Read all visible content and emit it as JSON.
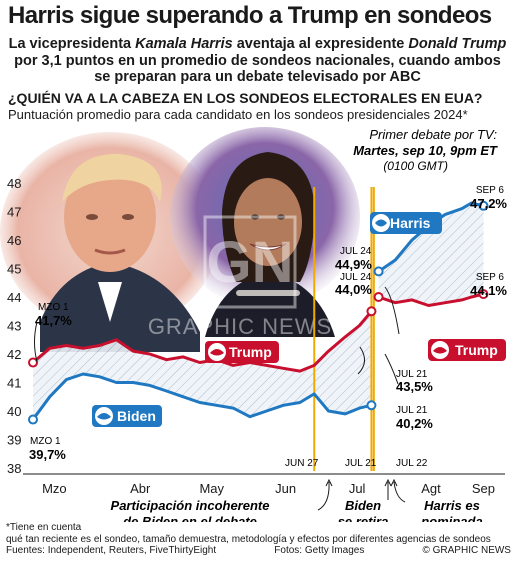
{
  "header": {
    "title": "Harris sigue superando a Trump en sondeos",
    "sub1_a": "La vicepresidenta ",
    "sub1_b": "Kamala Harris",
    "sub1_c": " aventaja al expresidente ",
    "sub1_d": "Donald Trump",
    "sub2": "por 3,1 puntos en un promedio de sondeos nacionales, cuando ambos",
    "sub3": "se preparan para un debate televisado por ABC",
    "question": "¿QUIÉN VA A LA CABEZA EN LOS SONDEOS ELECTORALES EN EUA?",
    "description": "Puntuación promedio para cada candidato en los sondeos presidenciales 2024*"
  },
  "debate": {
    "line1": "Primer debate por TV:",
    "line2": "Martes, sep 10, 9pm ET",
    "line3": "(0100 GMT)"
  },
  "watermark": "GRAPHIC NEWS",
  "candidates": {
    "harris": "Harris",
    "trump": "Trump",
    "biden": "Biden"
  },
  "labels": {
    "trump_start_date": "MZO 1",
    "trump_start_val": "41,7%",
    "biden_start_date": "MZO 1",
    "biden_start_val": "39,7%",
    "harris_jul24_date": "JUL 24",
    "harris_jul24_val": "44,9%",
    "trump_jul24_date": "JUL 24",
    "trump_jul24_val": "44,0%",
    "trump_jul21_date": "JUL 21",
    "trump_jul21_val": "43,5%",
    "biden_jul21_date": "JUL 21",
    "biden_jul21_val": "40,2%",
    "harris_sep6_date": "SEP 6",
    "harris_sep6_val": "47,2%",
    "trump_sep6_date": "SEP 6",
    "trump_sep6_val": "44,1%"
  },
  "events": {
    "jun27": "JUN 27",
    "jul21": "JUL 21",
    "jul22": "JUL 22",
    "ann1_l1": "Participación incoherente",
    "ann1_l2": "de Biden en el debate",
    "ann2_l1": "Biden",
    "ann2_l2": "se retira",
    "ann3_l1": "Harris es",
    "ann3_l2": "nominada"
  },
  "footer": {
    "note1": "*Tiene en cuenta",
    "note2": "qué tan reciente es el sondeo, tamaño demuestra, metodología y efectos por diferentes agencias de sondeos",
    "sources": "Fuentes: Independent, Reuters, FiveThirtyEight",
    "photos": "Fotos: Getty Images",
    "copyright": "© GRAPHIC NEWS"
  },
  "colors": {
    "trump": "#c8102e",
    "biden": "#1f78c1",
    "harris": "#1f78c1",
    "event": "#f2a900",
    "text": "#1a1a1a"
  },
  "chart_data": {
    "type": "line",
    "xaxis_ticks": [
      "Mzo",
      "Abr",
      "May",
      "Jun",
      "Jul",
      "Agt",
      "Sep"
    ],
    "ylim": [
      38,
      48
    ],
    "yticks": [
      38,
      39,
      40,
      41,
      42,
      43,
      44,
      45,
      46,
      47,
      48
    ],
    "series": [
      {
        "name": "Trump",
        "color": "#c8102e",
        "points": [
          [
            "2024-03-01",
            41.7
          ],
          [
            "2024-03-08",
            42.2
          ],
          [
            "2024-03-15",
            42.3
          ],
          [
            "2024-03-22",
            42.2
          ],
          [
            "2024-03-29",
            42.3
          ],
          [
            "2024-04-05",
            42.5
          ],
          [
            "2024-04-12",
            42.1
          ],
          [
            "2024-04-19",
            42.0
          ],
          [
            "2024-04-26",
            41.8
          ],
          [
            "2024-05-03",
            41.9
          ],
          [
            "2024-05-10",
            41.7
          ],
          [
            "2024-05-17",
            41.8
          ],
          [
            "2024-05-24",
            41.6
          ],
          [
            "2024-05-31",
            41.7
          ],
          [
            "2024-06-07",
            41.6
          ],
          [
            "2024-06-14",
            41.5
          ],
          [
            "2024-06-21",
            41.4
          ],
          [
            "2024-06-27",
            41.6
          ],
          [
            "2024-07-03",
            42.1
          ],
          [
            "2024-07-10",
            42.6
          ],
          [
            "2024-07-16",
            43.0
          ],
          [
            "2024-07-21",
            43.5
          ]
        ]
      },
      {
        "name": "Biden",
        "color": "#1f78c1",
        "points": [
          [
            "2024-03-01",
            39.7
          ],
          [
            "2024-03-08",
            40.5
          ],
          [
            "2024-03-15",
            41.1
          ],
          [
            "2024-03-22",
            41.3
          ],
          [
            "2024-03-29",
            41.2
          ],
          [
            "2024-04-05",
            41.0
          ],
          [
            "2024-04-12",
            41.0
          ],
          [
            "2024-04-19",
            40.9
          ],
          [
            "2024-04-26",
            40.7
          ],
          [
            "2024-05-03",
            40.5
          ],
          [
            "2024-05-10",
            40.3
          ],
          [
            "2024-05-17",
            40.2
          ],
          [
            "2024-05-24",
            40.1
          ],
          [
            "2024-05-31",
            39.8
          ],
          [
            "2024-06-07",
            40.0
          ],
          [
            "2024-06-14",
            40.2
          ],
          [
            "2024-06-21",
            40.3
          ],
          [
            "2024-06-27",
            40.6
          ],
          [
            "2024-07-03",
            40.0
          ],
          [
            "2024-07-10",
            39.9
          ],
          [
            "2024-07-16",
            40.1
          ],
          [
            "2024-07-21",
            40.2
          ]
        ]
      },
      {
        "name": "Harris",
        "color": "#1f78c1",
        "points": [
          [
            "2024-07-24",
            44.9
          ],
          [
            "2024-07-31",
            45.3
          ],
          [
            "2024-08-07",
            46.0
          ],
          [
            "2024-08-14",
            46.5
          ],
          [
            "2024-08-21",
            46.9
          ],
          [
            "2024-08-28",
            47.1
          ],
          [
            "2024-09-01",
            47.3
          ],
          [
            "2024-09-06",
            47.2
          ]
        ]
      },
      {
        "name": "Trump",
        "color": "#c8102e",
        "points": [
          [
            "2024-07-24",
            44.0
          ],
          [
            "2024-07-31",
            43.8
          ],
          [
            "2024-08-07",
            43.9
          ],
          [
            "2024-08-14",
            43.7
          ],
          [
            "2024-08-21",
            43.8
          ],
          [
            "2024-08-28",
            43.9
          ],
          [
            "2024-09-01",
            44.0
          ],
          [
            "2024-09-06",
            44.1
          ]
        ]
      }
    ],
    "events": [
      {
        "date": "2024-06-27",
        "label": "JUN 27"
      },
      {
        "date": "2024-07-21",
        "label": "JUL 21"
      },
      {
        "date": "2024-07-22",
        "label": "JUL 22"
      }
    ]
  }
}
